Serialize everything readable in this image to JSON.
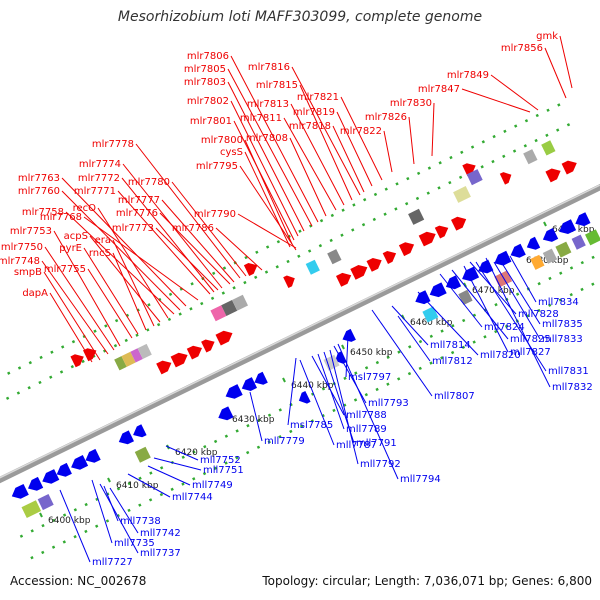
{
  "title": "Mesorhizobium loti MAFF303099, complete genome",
  "footer": {
    "accession": "Accession: NC_002678",
    "summary": "Topology: circular; Length: 7,036,071 bp; Genes: 6,800"
  },
  "colors": {
    "forward": "#ee0000",
    "reverse": "#0000ee",
    "backbone": "#9a9a9a",
    "ticks": "#33aa33"
  },
  "kbp_ticks": [
    "6400 kbp",
    "6410 kbp",
    "6420 kbp",
    "6430 kbp",
    "6440 kbp",
    "6450 kbp",
    "6460 kbp",
    "6470 kbp",
    "6480 kbp",
    "6490 kbp"
  ],
  "forward_gene_labels": [
    "gmk",
    "mlr7856",
    "mlr7849",
    "mlr7847",
    "mlr7830",
    "mlr7826",
    "mlr7822",
    "mlr7821",
    "mlr7819",
    "mlr7818",
    "mlr7816",
    "mlr7815",
    "mlr7813",
    "mlr7811",
    "mlr7808",
    "mlr7806",
    "mlr7805",
    "mlr7803",
    "mlr7802",
    "mlr7801",
    "mlr7800",
    "cysS",
    "mlr7795",
    "mlr7790",
    "mlr7786",
    "mlr7780",
    "mlr7778",
    "mlr7777",
    "mlr7776",
    "mlr7774",
    "mlr7773",
    "mlr7772",
    "mlr7771",
    "mlr7768",
    "mlr7763",
    "mlr7760",
    "mlr7758",
    "recO",
    "acpS",
    "era",
    "rncS",
    "pyrE",
    "mlr7755",
    "mlr7753",
    "mlr7750",
    "mlr7748",
    "smpB",
    "dapA"
  ],
  "reverse_gene_labels": [
    "mll7727",
    "mll7735",
    "mll7737",
    "mll7738",
    "mll7742",
    "mll7744",
    "mll7749",
    "mll7751",
    "mll7752",
    "mll7779",
    "msl7785",
    "mll7787",
    "mll7788",
    "mll7789",
    "mll7791",
    "mll7792",
    "mll7793",
    "mll7794",
    "msl7797",
    "mll7807",
    "mll7812",
    "mll7814",
    "mll7820",
    "mll7824",
    "mll7825",
    "mll7827",
    "mll7828",
    "mll7831",
    "mll7832",
    "mll7833",
    "mll7834",
    "mll7835"
  ]
}
